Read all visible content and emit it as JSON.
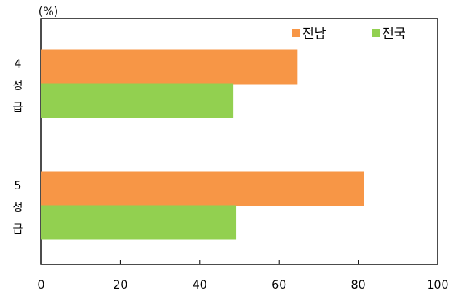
{
  "chart_data": {
    "type": "bar",
    "orientation": "horizontal",
    "unit_label": "(%)",
    "categories": [
      [
        "4",
        "성",
        "급"
      ],
      [
        "5",
        "성",
        "급"
      ]
    ],
    "series": [
      {
        "name": "전남",
        "color": "#f79646",
        "values": [
          64.7,
          81.5
        ]
      },
      {
        "name": "전국",
        "color": "#92d050",
        "values": [
          48.4,
          49.2
        ]
      }
    ],
    "xlim": [
      0,
      100
    ],
    "xticks": [
      "0",
      "20",
      "40",
      "60",
      "80",
      "100"
    ],
    "grid": false,
    "legend_position": "top-right",
    "title": "",
    "xlabel": "",
    "ylabel": ""
  }
}
